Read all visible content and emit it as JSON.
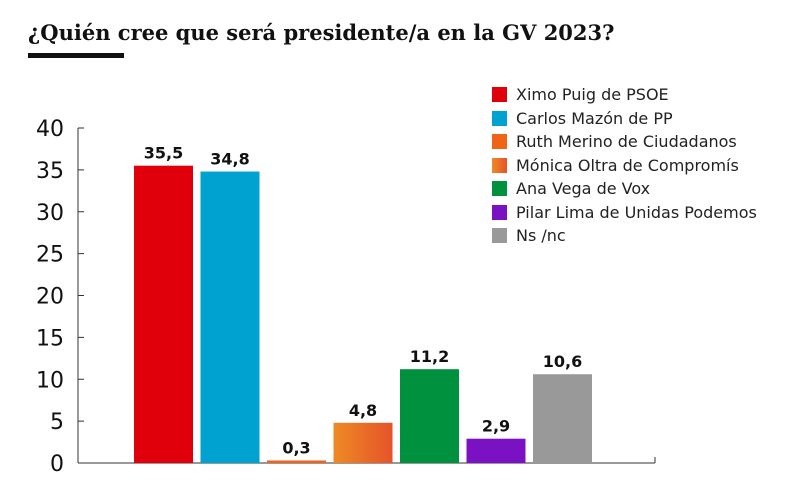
{
  "title": "¿Quién cree que será presidente/a en la GV 2023?",
  "chart_data": {
    "type": "bar",
    "title": "¿Quién cree que será presidente/a en la GV 2023?",
    "xlabel": "",
    "ylabel": "",
    "ylim": [
      0,
      40
    ],
    "yticks": [
      "0",
      "5",
      "10",
      "15",
      "20",
      "25",
      "30",
      "35",
      "40"
    ],
    "grid": false,
    "legend_position": "top-right",
    "categories": [
      "Ximo Puig de PSOE",
      "Carlos Mazón de PP",
      "Ruth Merino de Ciudadanos",
      "Mónica Oltra de Compromís",
      "Ana Vega de Vox",
      "Pilar Lima de Unidas Podemos",
      "Ns /nc"
    ],
    "values": [
      35.5,
      34.8,
      0.3,
      4.8,
      11.2,
      2.9,
      10.6
    ],
    "value_labels": [
      "35,5",
      "34,8",
      "0,3",
      "4,8",
      "11,2",
      "2,9",
      "10,6"
    ],
    "colors": [
      "#e0000b",
      "#00a2cf",
      "#f06418",
      "#ee8a24",
      "#00913f",
      "#7a11c2",
      "#999999"
    ],
    "gradient_end_colors": [
      null,
      null,
      null,
      "#e6532a",
      null,
      null,
      null
    ]
  }
}
